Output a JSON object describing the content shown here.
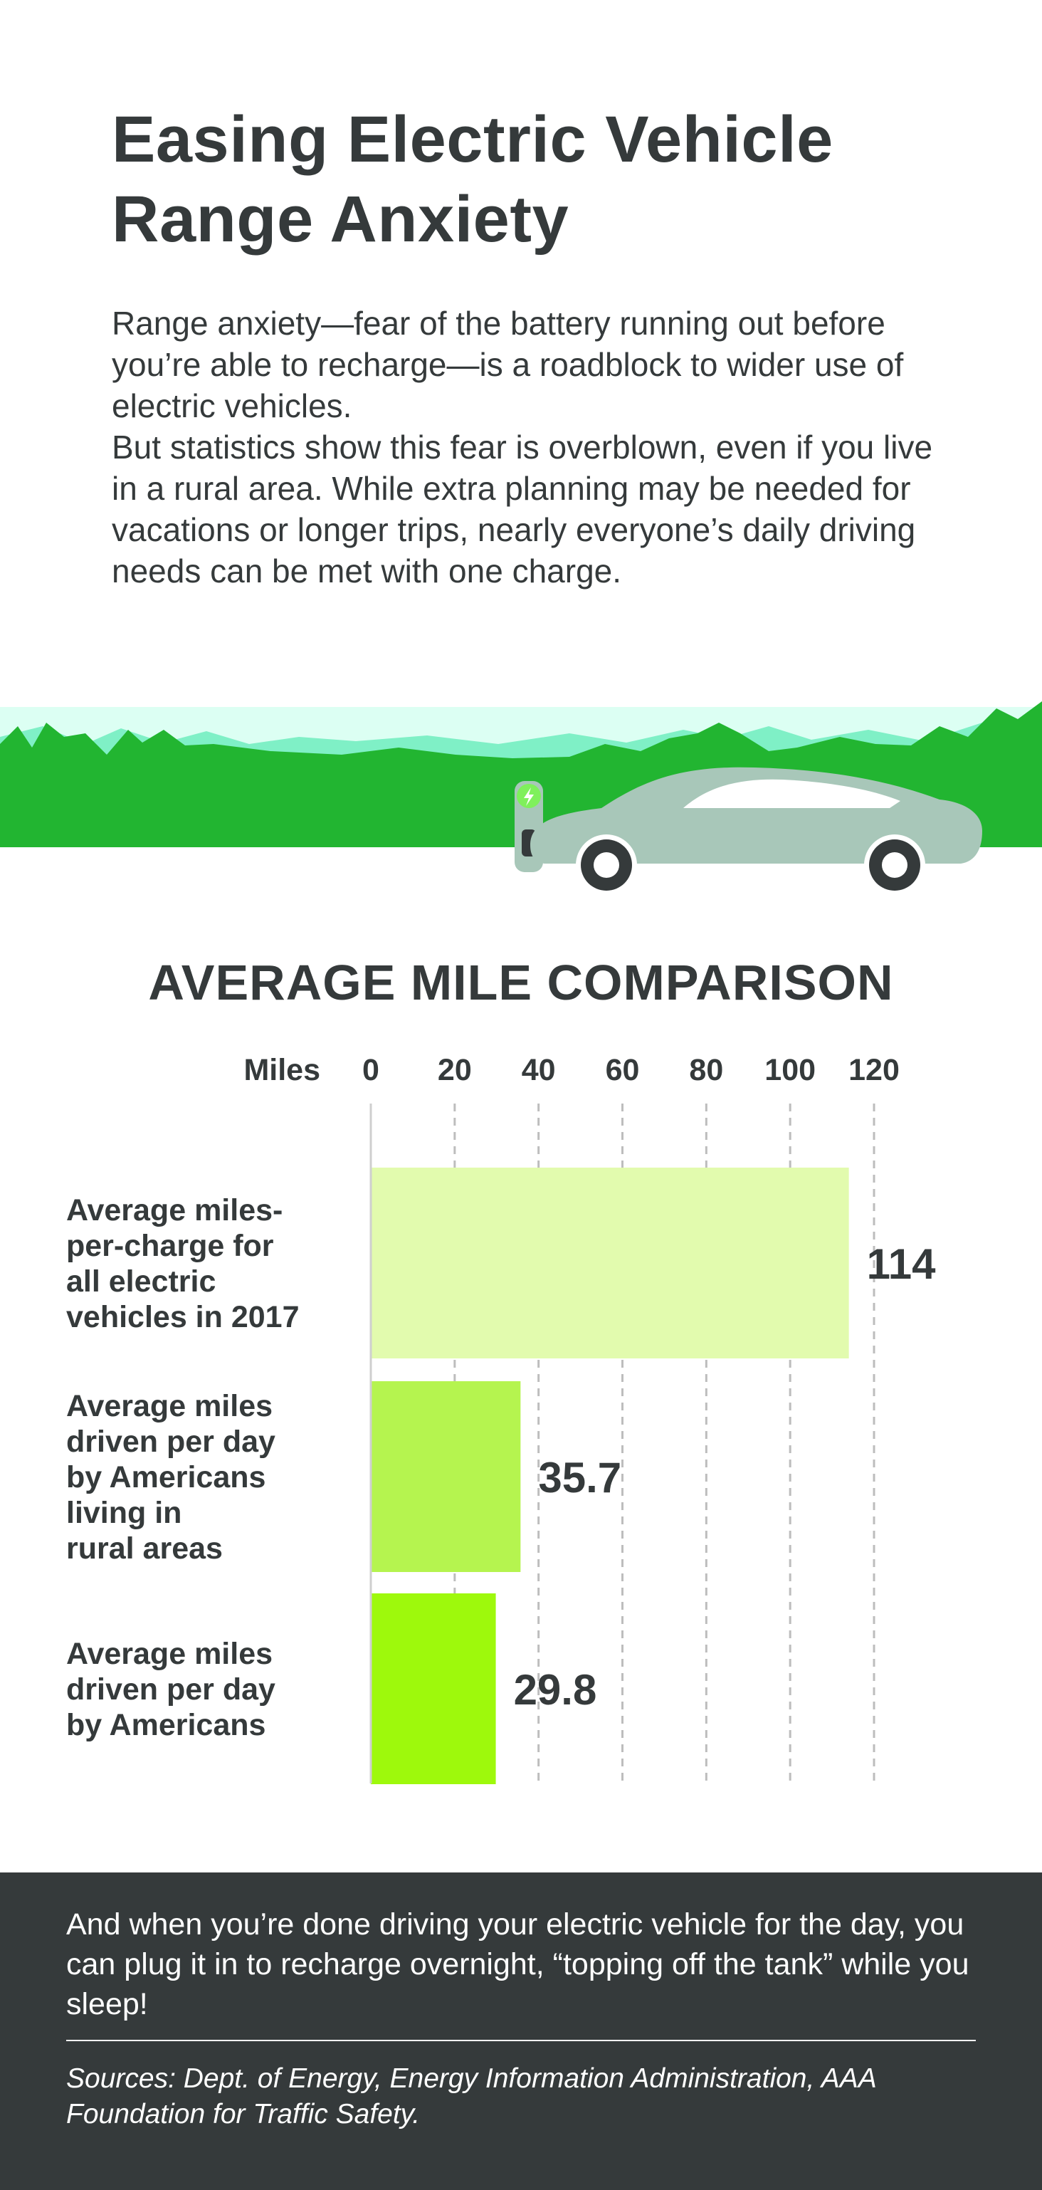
{
  "title": "Easing Electric Vehicle Range Anxiety",
  "intro": [
    "Range anxiety—fear of the battery running out before you’re able to recharge—is a roadblock to wider use of electric vehicles.",
    "But statistics show this fear is overblown, even if you live in a rural area. While extra planning may be needed for vacations or longer trips, nearly everyone’s daily driving needs can be met with one charge."
  ],
  "colors": {
    "text": "#353a3b",
    "footer_bg": "#353a3b",
    "car_body": "#a8c7b9",
    "hills_dark": "#22b531",
    "hills_light": "#7ff0c6",
    "bar_colors": [
      "#e2fbae",
      "#b5f44f",
      "#9ef90c"
    ]
  },
  "icons": [
    "mountain-landscape",
    "ev-charger-icon",
    "electric-car-icon"
  ],
  "chart_data": {
    "type": "bar",
    "orientation": "horizontal",
    "title": "AVERAGE MILE COMPARISON",
    "xlabel": "Miles",
    "xlim": [
      0,
      120
    ],
    "xticks": [
      0,
      20,
      40,
      60,
      80,
      100,
      120
    ],
    "grid": "vertical dashed",
    "categories": [
      "Average miles-per-charge for all electric vehicles in 2017",
      "Average miles driven per day by Americans living in rural areas",
      "Average miles driven per day by Americans"
    ],
    "category_lines": [
      [
        "Average miles-",
        "per-charge for",
        "all electric",
        "vehicles in 2017"
      ],
      [
        "Average miles",
        "driven per day",
        "by Americans",
        "living in",
        "rural areas"
      ],
      [
        "Average miles",
        "driven per day",
        "by Americans"
      ]
    ],
    "values": [
      114,
      35.7,
      29.8
    ],
    "value_labels": [
      "114",
      "35.7",
      "29.8"
    ]
  },
  "footer": {
    "main": "And when you’re done driving your electric vehicle for the day, you can plug it in to recharge overnight, “topping off the tank” while you sleep!",
    "sources": "Sources: Dept. of Energy, Energy Information Administration, AAA Foundation for Traffic Safety."
  }
}
